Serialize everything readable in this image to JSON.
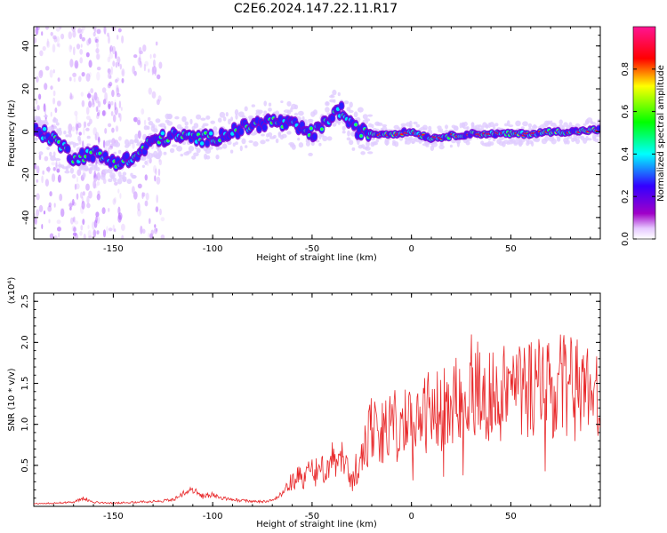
{
  "title": "C2E6.2024.147.22.11.R17",
  "chart_data": [
    {
      "type": "heatmap",
      "xlabel": "Height of straight line (km)",
      "ylabel": "Frequency (Hz)",
      "xlim": [
        -190,
        95
      ],
      "ylim": [
        -50,
        49
      ],
      "xticks": [
        -150,
        -100,
        -50,
        0,
        50
      ],
      "yticks": [
        -40,
        -20,
        0,
        20,
        40
      ],
      "colorbar": {
        "label": "Normalized spectral amplitude",
        "range": [
          0.0,
          1.0
        ],
        "ticks": [
          "0.0",
          "0.2",
          "0.4",
          "0.6",
          "0.8"
        ]
      },
      "ridge": {
        "x": [
          -190,
          -180,
          -170,
          -160,
          -150,
          -140,
          -130,
          -120,
          -110,
          -100,
          -90,
          -80,
          -70,
          -60,
          -50,
          -45,
          -40,
          -35,
          -30,
          -25,
          -20,
          -10,
          0,
          10,
          20,
          30,
          40,
          50,
          60,
          70,
          80,
          95
        ],
        "y": [
          1,
          -3,
          -12,
          -10,
          -14,
          -13,
          -4,
          -2,
          -3,
          -3,
          0,
          3,
          5,
          3,
          -1,
          2,
          8,
          10,
          2,
          0,
          -1,
          -1,
          0,
          -3,
          -2,
          -1,
          -1,
          -1,
          -1,
          0,
          0,
          1
        ]
      },
      "colors": [
        "#a000c8",
        "#3300ff",
        "#00ffff",
        "#00ff00",
        "#ffff00",
        "#ff0000",
        "#ff1493"
      ]
    },
    {
      "type": "line",
      "xlabel": "Height of straight line (km)",
      "ylabel": "SNR (10 * v/v)",
      "scale_label": "(x10⁴)",
      "xlim": [
        -190,
        95
      ],
      "ylim": [
        0,
        2.6
      ],
      "xticks": [
        -150,
        -100,
        -50,
        0,
        50
      ],
      "yticks": [
        0.5,
        1.0,
        1.5,
        2.0,
        2.5
      ],
      "series": [
        {
          "color": "#e8282a",
          "x": [
            -190,
            -180,
            -170,
            -165,
            -160,
            -150,
            -140,
            -130,
            -120,
            -115,
            -110,
            -105,
            -100,
            -95,
            -90,
            -85,
            -80,
            -75,
            -70,
            -65,
            -60,
            -55,
            -50,
            -45,
            -40,
            -35,
            -30,
            -25,
            -20,
            -15,
            -10,
            -5,
            0,
            5,
            10,
            15,
            20,
            25,
            30,
            35,
            40,
            45,
            50,
            55,
            60,
            65,
            70,
            75,
            80,
            85,
            90,
            95
          ],
          "y": [
            0.03,
            0.04,
            0.05,
            0.1,
            0.05,
            0.04,
            0.05,
            0.06,
            0.08,
            0.15,
            0.2,
            0.12,
            0.15,
            0.1,
            0.08,
            0.07,
            0.06,
            0.06,
            0.08,
            0.15,
            0.3,
            0.35,
            0.4,
            0.5,
            0.55,
            0.7,
            0.3,
            0.6,
            0.95,
            0.9,
            1.0,
            0.95,
            1.05,
            1.1,
            1.15,
            1.2,
            1.2,
            1.25,
            1.3,
            1.35,
            1.35,
            1.4,
            1.45,
            1.4,
            1.45,
            1.45,
            1.4,
            1.45,
            1.45,
            1.4,
            1.35,
            1.35
          ]
        }
      ]
    }
  ]
}
